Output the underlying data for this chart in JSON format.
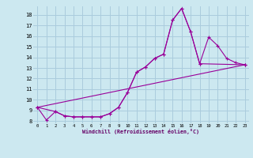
{
  "bg_color": "#cce8f0",
  "grid_color": "#aaccdd",
  "line_color": "#990099",
  "xlabel": "Windchill (Refroidissement éolien,°C)",
  "xlim": [
    -0.5,
    23.5
  ],
  "ylim": [
    7.8,
    18.8
  ],
  "yticks": [
    8,
    9,
    10,
    11,
    12,
    13,
    14,
    15,
    16,
    17,
    18
  ],
  "xticks": [
    0,
    1,
    2,
    3,
    4,
    5,
    6,
    7,
    8,
    9,
    10,
    11,
    12,
    13,
    14,
    15,
    16,
    17,
    18,
    19,
    20,
    21,
    22,
    23
  ],
  "line1_x": [
    0,
    1,
    2,
    3,
    4,
    5,
    6,
    7,
    8,
    9,
    10,
    11,
    12,
    13,
    14,
    15,
    16,
    17,
    18,
    19,
    20,
    21,
    22,
    23
  ],
  "line1_y": [
    9.3,
    8.1,
    8.9,
    8.5,
    8.4,
    8.4,
    8.4,
    8.4,
    8.7,
    9.3,
    10.7,
    12.6,
    13.1,
    13.9,
    14.3,
    17.5,
    18.6,
    16.4,
    13.4,
    15.9,
    15.1,
    13.9,
    13.5,
    13.3
  ],
  "line2_x": [
    0,
    2,
    3,
    4,
    5,
    6,
    7,
    8,
    9,
    10,
    11,
    12,
    13,
    14,
    15,
    16,
    17,
    18,
    23
  ],
  "line2_y": [
    9.3,
    8.9,
    8.5,
    8.4,
    8.4,
    8.4,
    8.4,
    8.7,
    9.3,
    10.7,
    12.6,
    13.1,
    13.9,
    14.3,
    17.5,
    18.6,
    16.4,
    13.4,
    13.3
  ],
  "line3_x": [
    0,
    23
  ],
  "line3_y": [
    9.3,
    13.3
  ]
}
